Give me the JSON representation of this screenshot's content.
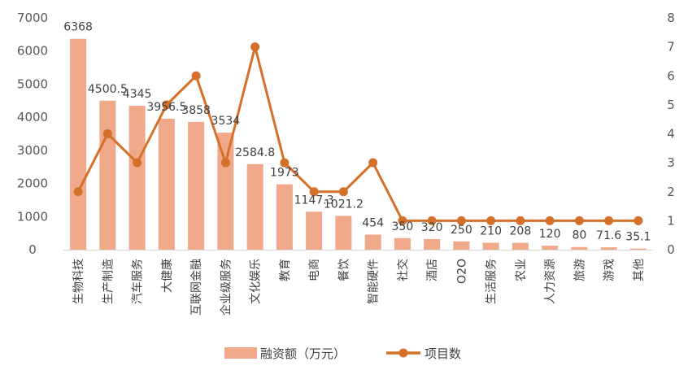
{
  "chart_data": {
    "type": "bar",
    "categories": [
      "生物科技",
      "生产制造",
      "汽车服务",
      "大健康",
      "互联网金融",
      "企业级服务",
      "文化娱乐",
      "教育",
      "电商",
      "餐饮",
      "智能硬件",
      "社交",
      "酒店",
      "O2O",
      "生活服务",
      "农业",
      "人力资源",
      "旅游",
      "游戏",
      "其他"
    ],
    "series": [
      {
        "name": "融资额（万元）",
        "type": "bar",
        "axis": "left",
        "values": [
          6368,
          4500.5,
          4345,
          3956.5,
          3858,
          3534,
          2584.8,
          1973,
          1147.3,
          1021.2,
          454,
          350,
          320,
          250,
          210,
          208,
          120,
          80,
          71.6,
          35.1
        ],
        "labels": [
          "6368",
          "4500.5",
          "4345",
          "3956.5",
          "3858",
          "3534",
          "2584.8",
          "1973",
          "1147.3",
          "1021.2",
          "454",
          "350",
          "320",
          "250",
          "210",
          "208",
          "120",
          "80",
          "71.6",
          "35.1"
        ],
        "color": "#F0A98A"
      },
      {
        "name": "项目数",
        "type": "line",
        "axis": "right",
        "values": [
          2,
          4,
          3,
          5,
          6,
          3,
          7,
          3,
          2,
          2,
          3,
          1,
          1,
          1,
          1,
          1,
          1,
          1,
          1,
          1
        ],
        "color": "#D4702A"
      }
    ],
    "y_left": {
      "min": 0,
      "max": 7000,
      "ticks": [
        "0",
        "1000",
        "2000",
        "3000",
        "4000",
        "5000",
        "6000",
        "7000"
      ]
    },
    "y_right": {
      "min": 0,
      "max": 8,
      "ticks": [
        "0",
        "1",
        "2",
        "3",
        "4",
        "5",
        "6",
        "7",
        "8"
      ]
    },
    "grid": false,
    "legend": "bottom"
  }
}
